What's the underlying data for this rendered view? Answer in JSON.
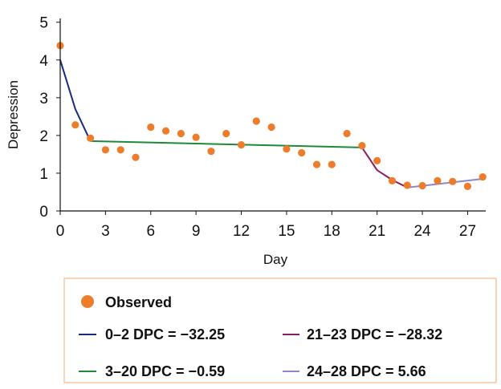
{
  "colors": {
    "observed": "#EE7D2B",
    "seg_0_2": "#1A2A80",
    "seg_3_20": "#1F8A38",
    "seg_21_23": "#8B2060",
    "seg_24_28": "#8C87C8",
    "legend_border": "#F2B98A",
    "axis": "#111111"
  },
  "chart_data": {
    "type": "scatter",
    "xlabel": "Day",
    "ylabel": "Depression",
    "xlim": [
      0,
      28.2
    ],
    "ylim": [
      0,
      5.1
    ],
    "x_ticks": [
      0,
      3,
      6,
      9,
      12,
      15,
      18,
      21,
      24,
      27
    ],
    "y_ticks": [
      0,
      1,
      2,
      3,
      4,
      5
    ],
    "grid": false,
    "legend_position": "bottom",
    "series": [
      {
        "name": "Observed",
        "kind": "points",
        "points": [
          [
            0,
            4.38
          ],
          [
            1,
            2.28
          ],
          [
            2,
            1.93
          ],
          [
            3,
            1.62
          ],
          [
            4,
            1.62
          ],
          [
            5,
            1.42
          ],
          [
            6,
            2.22
          ],
          [
            7,
            2.12
          ],
          [
            8,
            2.05
          ],
          [
            9,
            1.95
          ],
          [
            10,
            1.58
          ],
          [
            11,
            2.05
          ],
          [
            12,
            1.75
          ],
          [
            13,
            2.38
          ],
          [
            14,
            2.22
          ],
          [
            15,
            1.64
          ],
          [
            16,
            1.54
          ],
          [
            17,
            1.23
          ],
          [
            18,
            1.23
          ],
          [
            19,
            2.05
          ],
          [
            20,
            1.73
          ],
          [
            21,
            1.33
          ],
          [
            22,
            0.8
          ],
          [
            23,
            0.68
          ],
          [
            24,
            0.67
          ],
          [
            25,
            0.8
          ],
          [
            26,
            0.78
          ],
          [
            27,
            0.65
          ],
          [
            28,
            0.9
          ]
        ]
      },
      {
        "name": "0–2 DPC = −32.25",
        "kind": "line",
        "points": [
          [
            0,
            4.0
          ],
          [
            1,
            2.7
          ],
          [
            2,
            1.85
          ]
        ]
      },
      {
        "name": "3–20 DPC = −0.59",
        "kind": "line",
        "points": [
          [
            2,
            1.85
          ],
          [
            20,
            1.68
          ]
        ]
      },
      {
        "name": "21–23 DPC = −28.32",
        "kind": "line",
        "points": [
          [
            20,
            1.68
          ],
          [
            21,
            1.08
          ],
          [
            22,
            0.82
          ],
          [
            23,
            0.62
          ]
        ]
      },
      {
        "name": "24–28 DPC = 5.66",
        "kind": "line",
        "points": [
          [
            23,
            0.62
          ],
          [
            28,
            0.85
          ]
        ]
      }
    ]
  }
}
